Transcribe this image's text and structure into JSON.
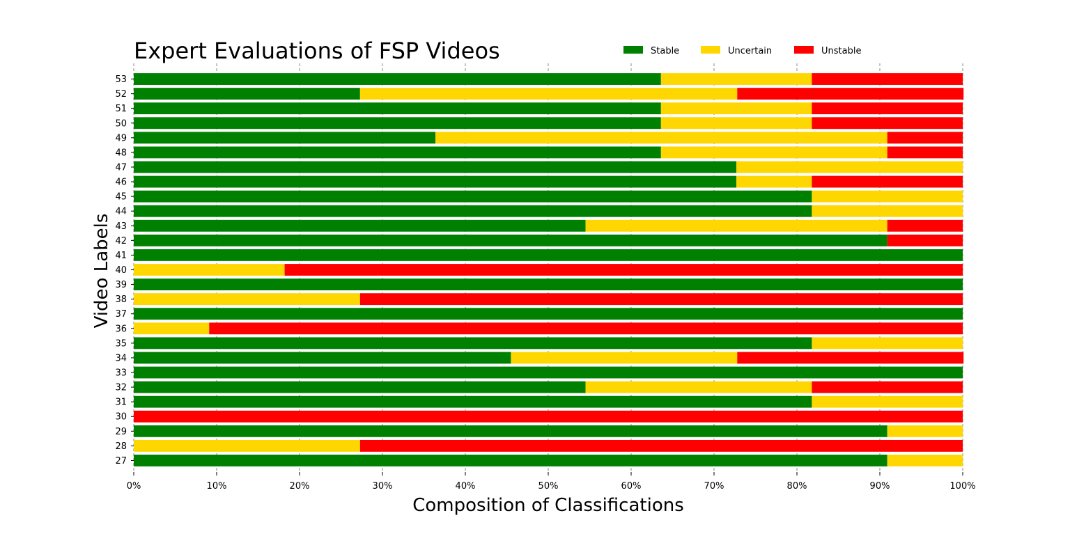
{
  "chart_data": {
    "type": "bar",
    "orientation": "horizontal",
    "stacked": true,
    "normalized": true,
    "title": "Expert Evaluations of FSP Videos",
    "xlabel": "Composition of Classifications",
    "ylabel": "Video Labels",
    "xlim": [
      0,
      1
    ],
    "x_ticks": [
      "0%",
      "10%",
      "20%",
      "30%",
      "40%",
      "50%",
      "60%",
      "70%",
      "80%",
      "90%",
      "100%"
    ],
    "grid": "vertical dashed",
    "legend_position": "top",
    "categories": [
      "27",
      "28",
      "29",
      "30",
      "31",
      "32",
      "33",
      "34",
      "35",
      "36",
      "37",
      "38",
      "39",
      "40",
      "41",
      "42",
      "43",
      "44",
      "45",
      "46",
      "47",
      "48",
      "49",
      "50",
      "51",
      "52",
      "53"
    ],
    "series": [
      {
        "name": "Stable",
        "color": "#008000",
        "values": [
          0.909,
          0,
          0.909,
          0,
          0.818,
          0.545,
          1,
          0.455,
          0.818,
          0,
          1,
          0,
          1,
          0,
          1,
          0.909,
          0.545,
          0.818,
          0.818,
          0.727,
          0.727,
          0.636,
          0.364,
          0.636,
          0.636,
          0.273,
          0.636
        ]
      },
      {
        "name": "Uncertain",
        "color": "#ffd700",
        "values": [
          0.091,
          0.273,
          0.091,
          0,
          0.182,
          0.273,
          0,
          0.273,
          0.182,
          0.091,
          0,
          0.273,
          0,
          0.182,
          0,
          0,
          0.364,
          0.182,
          0.182,
          0.091,
          0.273,
          0.273,
          0.545,
          0.182,
          0.182,
          0.455,
          0.182
        ]
      },
      {
        "name": "Unstable",
        "color": "#ff0000",
        "values": [
          0,
          0.727,
          0,
          1,
          0,
          0.182,
          0,
          0.273,
          0,
          0.909,
          0,
          0.727,
          0,
          0.818,
          0,
          0.091,
          0.091,
          0,
          0,
          0.182,
          0,
          0.091,
          0.091,
          0.182,
          0.182,
          0.273,
          0.182
        ]
      }
    ]
  }
}
